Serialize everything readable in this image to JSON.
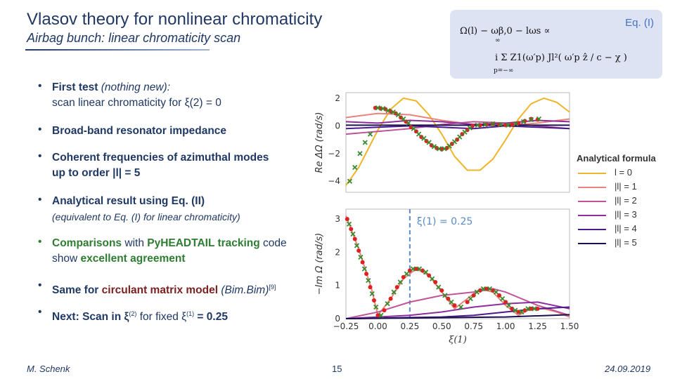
{
  "slide": {
    "title": "Vlasov theory for nonlinear chromaticity",
    "subtitle_italic": "Airbag bunch:",
    "subtitle_rest": " linear chromaticity scan",
    "equation_label": "Eq. (I)",
    "equation_line1": "Ω(l) − ωβ,0 − lωs ∝",
    "equation_line2": "i Σ Z1(ω′p) Jl²( ω′p ẑ / c − χ )",
    "equation_sum_top": "∞",
    "equation_sum_bottom": "p=−∞"
  },
  "bullets": [
    {
      "text_bold": "First test",
      "text_rest_italic": " (nothing new):",
      "line2": "scan linear chromaticity for ξ(2) = 0"
    },
    {
      "text_bold": "Broad-band resonator impedance"
    },
    {
      "text_bold": "Coherent frequencies of azimuthal modes",
      "line2": "up to order |l| = 5"
    },
    {
      "text_bold": "Analytical result using Eq. (II)",
      "line2_small": "(equivalent to Eq. (I) for linear chromaticity)"
    },
    {
      "p1": "Comparisons",
      "p2": " with ",
      "p3": "PyHEADTAIL tracking",
      "p4": " code",
      "line2a": "show ",
      "line2b": "excellent agreement"
    },
    {
      "p1": "Same for ",
      "p2": "circulant matrix model",
      "p3": " (Bim.Bim)",
      "sup": "[9]"
    },
    {
      "p1": "Next: Scan in ξ",
      "sup1": "(2)",
      "p2": " for fixed ξ",
      "sup2": "(1)",
      "p3": " = 0.25"
    }
  ],
  "footer": {
    "author": "M. Schenk",
    "page": "15",
    "date": "24.09.2019"
  },
  "legend": {
    "title": "Analytical  formula",
    "items": [
      {
        "label": "l = 0",
        "color": "#f0b429"
      },
      {
        "label": "|l| = 1",
        "color": "#e8837c"
      },
      {
        "label": "|l| = 2",
        "color": "#c0549a"
      },
      {
        "label": "|l| = 3",
        "color": "#8e2d9e"
      },
      {
        "label": "|l| = 4",
        "color": "#4b1a8c"
      },
      {
        "label": "|l| = 5",
        "color": "#1a1050"
      }
    ]
  },
  "chart_data": [
    {
      "type": "line",
      "ylabel": "Re ΔΩ (rad/s)",
      "xlim": [
        -0.25,
        1.5
      ],
      "ylim": [
        -4.8,
        2.4
      ],
      "yticks": [
        -4,
        -2,
        0,
        2
      ],
      "ytick_labels": [
        "−4",
        "−2",
        "0",
        "2"
      ],
      "series": [
        {
          "name": "l = 0",
          "x": [
            -0.25,
            -0.15,
            -0.05,
            0.0,
            0.1,
            0.2,
            0.3,
            0.4,
            0.5,
            0.6,
            0.7,
            0.8,
            0.9,
            1.0,
            1.1,
            1.2,
            1.3,
            1.4,
            1.5
          ],
          "y": [
            -4.3,
            -3.0,
            -1.2,
            -0.3,
            1.2,
            2.0,
            1.8,
            0.8,
            -0.6,
            -2.2,
            -3.2,
            -3.2,
            -2.4,
            -1.0,
            0.5,
            1.6,
            2.0,
            1.7,
            1.0
          ]
        },
        {
          "name": "|l| = 1",
          "x": [
            -0.25,
            0.0,
            0.25,
            0.5,
            0.75,
            1.0,
            1.25,
            1.5
          ],
          "y": [
            0.6,
            0.9,
            0.8,
            0.4,
            0.1,
            0.0,
            0.2,
            0.5
          ]
        },
        {
          "name": "|l| = 2",
          "x": [
            -0.25,
            0.0,
            0.25,
            0.5,
            0.75,
            1.0,
            1.25,
            1.5
          ],
          "y": [
            -0.6,
            -0.4,
            -0.2,
            0.1,
            0.3,
            0.2,
            0.0,
            -0.2
          ]
        },
        {
          "name": "|l| = 3",
          "x": [
            -0.25,
            0.0,
            0.25,
            0.5,
            0.75,
            1.0,
            1.25,
            1.5
          ],
          "y": [
            0.3,
            0.2,
            0.4,
            0.3,
            0.1,
            0.2,
            0.4,
            0.3
          ]
        },
        {
          "name": "|l| = 4",
          "x": [
            -0.25,
            0.0,
            0.25,
            0.5,
            0.75,
            1.0,
            1.25,
            1.5
          ],
          "y": [
            -0.2,
            -0.1,
            0.0,
            -0.1,
            -0.2,
            0.0,
            -0.1,
            -0.2
          ]
        },
        {
          "name": "|l| = 5",
          "x": [
            -0.25,
            1.5
          ],
          "y": [
            0.05,
            0.05
          ]
        }
      ],
      "markers_red": {
        "x": [
          -0.02,
          0.02,
          0.06,
          0.1,
          0.14,
          0.18,
          0.22,
          0.26,
          0.3,
          0.34,
          0.38,
          0.42,
          0.46,
          0.5,
          0.54,
          0.58,
          0.62,
          0.66,
          0.7,
          0.74,
          0.8,
          0.85,
          0.9,
          0.95,
          1.0,
          1.05,
          1.1,
          1.15,
          1.2,
          1.25
        ],
        "y": [
          1.3,
          1.25,
          1.2,
          1.05,
          0.9,
          0.6,
          0.3,
          -0.1,
          -0.4,
          -0.8,
          -1.1,
          -1.4,
          -1.6,
          -1.7,
          -1.6,
          -1.3,
          -1.0,
          -0.6,
          -0.3,
          0.0,
          0.05,
          0.1,
          0.15,
          0.1,
          0.05,
          0.1,
          0.2,
          0.35,
          0.5,
          0.45
        ]
      },
      "markers_green": {
        "x": [
          -0.22,
          -0.18,
          -0.14,
          -0.1,
          -0.06,
          0.0,
          0.04,
          0.08,
          0.12,
          0.16,
          0.2,
          0.24,
          0.28,
          0.32,
          0.36,
          0.4,
          0.44,
          0.48,
          0.52,
          0.56,
          0.6,
          0.64,
          0.68,
          0.72,
          0.78,
          0.84,
          0.9,
          0.96,
          1.02,
          1.08,
          1.14,
          1.2,
          1.26
        ],
        "y": [
          -4.0,
          -3.0,
          -2.0,
          -1.2,
          -0.6,
          1.3,
          1.25,
          1.1,
          1.0,
          0.8,
          0.5,
          0.2,
          -0.2,
          -0.6,
          -0.9,
          -1.2,
          -1.5,
          -1.65,
          -1.65,
          -1.45,
          -1.15,
          -0.8,
          -0.45,
          -0.15,
          0.05,
          0.1,
          0.15,
          0.1,
          0.05,
          0.15,
          0.3,
          0.45,
          0.5
        ]
      }
    },
    {
      "type": "line",
      "ylabel": "−Im Ω (rad/s)",
      "xlabel": "ξ(1)",
      "xlim": [
        -0.25,
        1.5
      ],
      "ylim": [
        0,
        3.3
      ],
      "xticks": [
        -0.25,
        0.0,
        0.25,
        0.5,
        0.75,
        1.0,
        1.25,
        1.5
      ],
      "xtick_labels": [
        "−0.25",
        "0.00",
        "0.25",
        "0.50",
        "0.75",
        "1.00",
        "1.25",
        "1.50"
      ],
      "yticks": [
        0,
        1,
        2,
        3
      ],
      "ytick_labels": [
        "0",
        "1",
        "2",
        "3"
      ],
      "annotation": {
        "text": "ξ(1) = 0.25",
        "x": 0.25
      },
      "series": [
        {
          "name": "|l| = 1",
          "x": [
            -0.25,
            -0.15,
            -0.05,
            0.0,
            0.1,
            0.2,
            0.3,
            0.4,
            0.5,
            0.6,
            0.7,
            0.8,
            0.9,
            1.0,
            1.1,
            1.2,
            1.3,
            1.4,
            1.5
          ],
          "y": [
            3.1,
            2.1,
            0.9,
            0.1,
            0.6,
            1.2,
            1.5,
            1.3,
            0.8,
            0.3,
            0.6,
            0.9,
            0.8,
            0.4,
            0.1,
            0.3,
            0.3,
            0.2,
            0.05
          ]
        },
        {
          "name": "|l| = 2",
          "x": [
            -0.25,
            0.0,
            0.25,
            0.5,
            0.75,
            0.9,
            1.0,
            1.25,
            1.5
          ],
          "y": [
            0.0,
            0.2,
            0.5,
            0.7,
            0.8,
            0.9,
            0.8,
            0.4,
            0.1
          ]
        },
        {
          "name": "|l| = 3",
          "x": [
            -0.25,
            0.0,
            0.25,
            0.5,
            0.75,
            1.0,
            1.25,
            1.5
          ],
          "y": [
            0.0,
            0.05,
            0.1,
            0.2,
            0.35,
            0.45,
            0.5,
            0.3
          ]
        },
        {
          "name": "|l| = 4",
          "x": [
            -0.25,
            0.5,
            0.75,
            1.0,
            1.25,
            1.5
          ],
          "y": [
            0.0,
            0.05,
            0.1,
            0.2,
            0.3,
            0.35
          ]
        },
        {
          "name": "|l| = 5",
          "x": [
            -0.25,
            1.0,
            1.5
          ],
          "y": [
            0.0,
            0.05,
            0.12
          ]
        }
      ],
      "markers_red": {
        "x": [
          -0.24,
          -0.21,
          -0.18,
          -0.15,
          -0.12,
          -0.09,
          -0.06,
          -0.03,
          0.0,
          0.05,
          0.1,
          0.15,
          0.2,
          0.25,
          0.3,
          0.35,
          0.4,
          0.45,
          0.5,
          0.55,
          0.6,
          0.7,
          0.75,
          0.8,
          0.85,
          0.9,
          0.95,
          1.0,
          1.05,
          1.1,
          1.15,
          1.2,
          1.25
        ],
        "y": [
          3.0,
          2.7,
          2.4,
          2.05,
          1.7,
          1.35,
          0.95,
          0.55,
          0.1,
          0.25,
          0.6,
          0.95,
          1.25,
          1.45,
          1.5,
          1.45,
          1.3,
          1.1,
          0.85,
          0.6,
          0.4,
          0.5,
          0.7,
          0.85,
          0.9,
          0.85,
          0.7,
          0.5,
          0.3,
          0.2,
          0.25,
          0.3,
          0.3
        ]
      },
      "markers_green": {
        "x": [
          -0.225,
          -0.195,
          -0.165,
          -0.135,
          -0.105,
          -0.075,
          -0.045,
          -0.015,
          0.025,
          0.075,
          0.125,
          0.175,
          0.225,
          0.275,
          0.325,
          0.375,
          0.425,
          0.475,
          0.525,
          0.575,
          0.65,
          0.725,
          0.775,
          0.825,
          0.875,
          0.925,
          0.975,
          1.025,
          1.075,
          1.125,
          1.175,
          1.225
        ],
        "y": [
          2.85,
          2.55,
          2.2,
          1.85,
          1.5,
          1.15,
          0.75,
          0.35,
          0.1,
          0.45,
          0.8,
          1.1,
          1.35,
          1.5,
          1.5,
          1.4,
          1.2,
          0.95,
          0.7,
          0.5,
          0.35,
          0.6,
          0.8,
          0.9,
          0.9,
          0.8,
          0.6,
          0.4,
          0.25,
          0.2,
          0.3,
          0.3
        ]
      }
    }
  ]
}
